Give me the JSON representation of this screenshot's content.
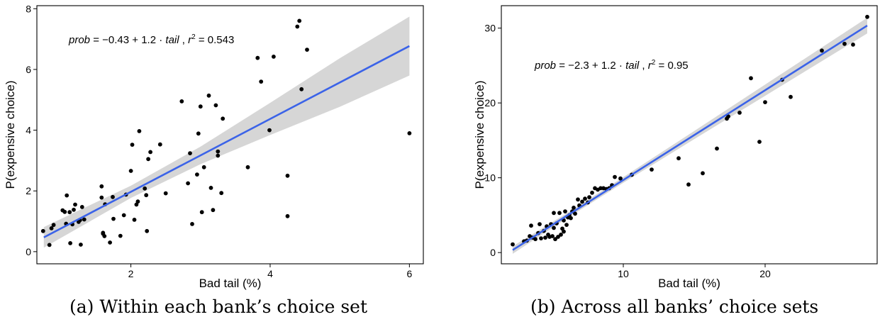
{
  "captions": {
    "a": "(a) Within each bank’s choice set",
    "b": "(b) Across all banks’ choice sets"
  },
  "colors": {
    "fit_line": "#3b63e8",
    "ci_band": "#d6d6d6",
    "points": "#000000"
  },
  "chart_data": [
    {
      "type": "scatter",
      "title": "",
      "xlabel": "Bad tail (%)",
      "ylabel": "P(expensive choice)",
      "xlim": [
        0.65,
        6.2
      ],
      "ylim": [
        -0.4,
        8.1
      ],
      "xticks": [
        2,
        4,
        6
      ],
      "yticks": [
        0,
        2,
        4,
        6,
        8
      ],
      "grid": false,
      "fit": {
        "intercept": -0.43,
        "slope": 1.2,
        "r2": 0.543,
        "x_range": [
          0.75,
          6.0
        ],
        "ci_halfwidth": [
          [
            0.75,
            0.34
          ],
          [
            2.0,
            0.2
          ],
          [
            3.0,
            0.29
          ],
          [
            4.0,
            0.53
          ],
          [
            5.0,
            0.8
          ],
          [
            6.0,
            0.97
          ]
        ]
      },
      "annotation": {
        "prob": "prob",
        "equals": " = ",
        "intercept": "−0.43",
        "plus": " + ",
        "slope": "1.2",
        "dot": " · ",
        "tail": "tail",
        "comma": " ,  ",
        "r": "r",
        "sup": "2",
        "r2_value": " = 0.543"
      },
      "points": [
        [
          0.74,
          0.68
        ],
        [
          0.83,
          0.22
        ],
        [
          0.86,
          0.77
        ],
        [
          0.89,
          0.88
        ],
        [
          1.02,
          1.36
        ],
        [
          1.05,
          1.31
        ],
        [
          1.07,
          0.92
        ],
        [
          1.08,
          1.85
        ],
        [
          1.12,
          1.3
        ],
        [
          1.13,
          0.28
        ],
        [
          1.16,
          0.9
        ],
        [
          1.18,
          1.38
        ],
        [
          1.2,
          1.55
        ],
        [
          1.25,
          0.98
        ],
        [
          1.27,
          1.04
        ],
        [
          1.28,
          0.23
        ],
        [
          1.3,
          1.47
        ],
        [
          1.33,
          1.06
        ],
        [
          1.58,
          2.15
        ],
        [
          1.58,
          1.78
        ],
        [
          1.6,
          0.59
        ],
        [
          1.6,
          0.62
        ],
        [
          1.62,
          0.51
        ],
        [
          1.63,
          1.56
        ],
        [
          1.7,
          0.3
        ],
        [
          1.74,
          1.8
        ],
        [
          1.75,
          1.08
        ],
        [
          1.85,
          0.52
        ],
        [
          1.9,
          1.2
        ],
        [
          1.93,
          1.88
        ],
        [
          2.0,
          2.66
        ],
        [
          2.02,
          3.52
        ],
        [
          2.05,
          1.05
        ],
        [
          2.08,
          1.55
        ],
        [
          2.1,
          1.65
        ],
        [
          2.12,
          3.97
        ],
        [
          2.2,
          2.08
        ],
        [
          2.22,
          1.86
        ],
        [
          2.23,
          0.68
        ],
        [
          2.25,
          3.05
        ],
        [
          2.28,
          3.28
        ],
        [
          2.42,
          3.53
        ],
        [
          2.5,
          1.92
        ],
        [
          2.73,
          4.95
        ],
        [
          2.82,
          2.25
        ],
        [
          2.85,
          3.24
        ],
        [
          2.88,
          0.91
        ],
        [
          2.95,
          2.54
        ],
        [
          2.97,
          3.89
        ],
        [
          3.0,
          4.78
        ],
        [
          3.02,
          1.3
        ],
        [
          3.05,
          2.78
        ],
        [
          3.12,
          5.14
        ],
        [
          3.15,
          2.1
        ],
        [
          3.18,
          1.37
        ],
        [
          3.22,
          4.82
        ],
        [
          3.25,
          3.16
        ],
        [
          3.25,
          3.3
        ],
        [
          3.3,
          1.93
        ],
        [
          3.32,
          4.38
        ],
        [
          3.68,
          2.78
        ],
        [
          3.82,
          6.38
        ],
        [
          3.87,
          5.6
        ],
        [
          3.99,
          4.0
        ],
        [
          4.05,
          6.42
        ],
        [
          4.25,
          2.5
        ],
        [
          4.25,
          1.17
        ],
        [
          4.39,
          7.41
        ],
        [
          4.42,
          7.6
        ],
        [
          4.45,
          5.35
        ],
        [
          4.53,
          6.65
        ],
        [
          6.0,
          3.9
        ]
      ]
    },
    {
      "type": "scatter",
      "title": "",
      "xlabel": "Bad tail (%)",
      "ylabel": "P(expensive choice)",
      "xlim": [
        1.4,
        27.9
      ],
      "ylim": [
        -1.5,
        33.0
      ],
      "xticks": [
        10,
        20
      ],
      "yticks": [
        0,
        10,
        20,
        30
      ],
      "grid": false,
      "fit": {
        "intercept": -2.3,
        "slope": 1.2,
        "r2": 0.95,
        "x_range": [
          2.2,
          27.2
        ],
        "ci_halfwidth": [
          [
            2.2,
            0.5
          ],
          [
            6.0,
            0.34
          ],
          [
            10.0,
            0.38
          ],
          [
            15.0,
            0.55
          ],
          [
            20.0,
            0.75
          ],
          [
            27.2,
            1.05
          ]
        ]
      },
      "annotation": {
        "prob": "prob",
        "equals": " = ",
        "intercept": "−2.3",
        "plus": " + ",
        "slope": "1.2",
        "dot": " · ",
        "tail": "tail",
        "comma": " ,  ",
        "r": "r",
        "sup": "2",
        "r2_value": " = 0.95"
      },
      "points": [
        [
          2.2,
          1.1
        ],
        [
          3.0,
          1.5
        ],
        [
          3.2,
          1.6
        ],
        [
          3.4,
          2.2
        ],
        [
          3.5,
          3.6
        ],
        [
          3.6,
          2.0
        ],
        [
          3.8,
          1.8
        ],
        [
          4.0,
          2.6
        ],
        [
          4.1,
          3.8
        ],
        [
          4.2,
          1.9
        ],
        [
          4.4,
          2.9
        ],
        [
          4.5,
          2.0
        ],
        [
          4.6,
          3.5
        ],
        [
          4.7,
          2.4
        ],
        [
          4.8,
          2.1
        ],
        [
          4.9,
          3.8
        ],
        [
          5.0,
          2.2
        ],
        [
          5.1,
          3.3
        ],
        [
          5.1,
          5.3
        ],
        [
          5.2,
          1.8
        ],
        [
          5.3,
          3.9
        ],
        [
          5.4,
          2.1
        ],
        [
          5.5,
          5.3
        ],
        [
          5.6,
          2.4
        ],
        [
          5.7,
          3.2
        ],
        [
          5.8,
          4.3
        ],
        [
          5.8,
          2.8
        ],
        [
          5.9,
          5.5
        ],
        [
          6.0,
          3.7
        ],
        [
          6.1,
          4.7
        ],
        [
          6.2,
          5.0
        ],
        [
          6.3,
          4.6
        ],
        [
          6.4,
          5.5
        ],
        [
          6.5,
          6.0
        ],
        [
          6.6,
          5.2
        ],
        [
          6.8,
          7.1
        ],
        [
          6.9,
          6.3
        ],
        [
          7.1,
          6.8
        ],
        [
          7.3,
          7.2
        ],
        [
          7.5,
          6.7
        ],
        [
          7.6,
          7.4
        ],
        [
          7.8,
          8.0
        ],
        [
          8.0,
          8.6
        ],
        [
          8.2,
          8.4
        ],
        [
          8.4,
          8.6
        ],
        [
          8.6,
          8.6
        ],
        [
          8.8,
          8.5
        ],
        [
          9.0,
          8.6
        ],
        [
          9.2,
          9.0
        ],
        [
          9.4,
          10.1
        ],
        [
          9.8,
          9.9
        ],
        [
          10.6,
          10.4
        ],
        [
          12.0,
          11.1
        ],
        [
          13.9,
          12.6
        ],
        [
          14.6,
          9.1
        ],
        [
          15.6,
          10.6
        ],
        [
          16.6,
          13.9
        ],
        [
          17.3,
          17.9
        ],
        [
          17.4,
          18.2
        ],
        [
          18.2,
          18.7
        ],
        [
          19.0,
          23.3
        ],
        [
          19.6,
          14.8
        ],
        [
          20.0,
          20.1
        ],
        [
          21.2,
          23.1
        ],
        [
          21.8,
          20.8
        ],
        [
          24.0,
          27.0
        ],
        [
          25.6,
          27.9
        ],
        [
          26.2,
          27.8
        ],
        [
          27.2,
          31.5
        ]
      ]
    }
  ]
}
